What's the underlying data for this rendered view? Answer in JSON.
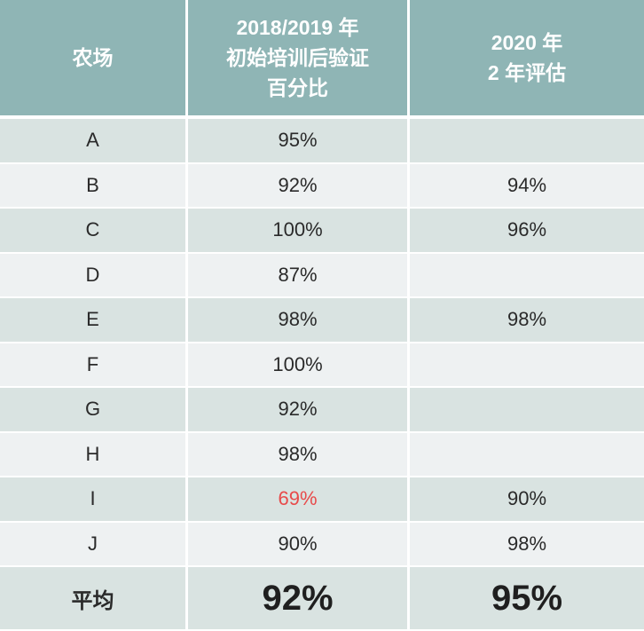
{
  "table": {
    "headers": [
      "农场",
      "2018/2019 年\n初始培训后验证\n百分比",
      "2020 年\n2 年评估"
    ],
    "rows": [
      {
        "farm": "A",
        "initial": "95%",
        "eval2020": ""
      },
      {
        "farm": "B",
        "initial": "92%",
        "eval2020": "94%"
      },
      {
        "farm": "C",
        "initial": "100%",
        "eval2020": "96%"
      },
      {
        "farm": "D",
        "initial": "87%",
        "eval2020": ""
      },
      {
        "farm": "E",
        "initial": "98%",
        "eval2020": "98%"
      },
      {
        "farm": "F",
        "initial": "100%",
        "eval2020": ""
      },
      {
        "farm": "G",
        "initial": "92%",
        "eval2020": ""
      },
      {
        "farm": "H",
        "initial": "98%",
        "eval2020": ""
      },
      {
        "farm": "I",
        "initial": "69%",
        "eval2020": "90%"
      },
      {
        "farm": "J",
        "initial": "90%",
        "eval2020": "98%"
      }
    ],
    "average": {
      "label": "平均",
      "initial": "92%",
      "eval2020": "95%"
    }
  },
  "colors": {
    "header_bg": "#8fb5b5",
    "row_odd_bg": "#d9e3e1",
    "row_even_bg": "#eef1f2",
    "alert_text": "#e84a4a"
  }
}
